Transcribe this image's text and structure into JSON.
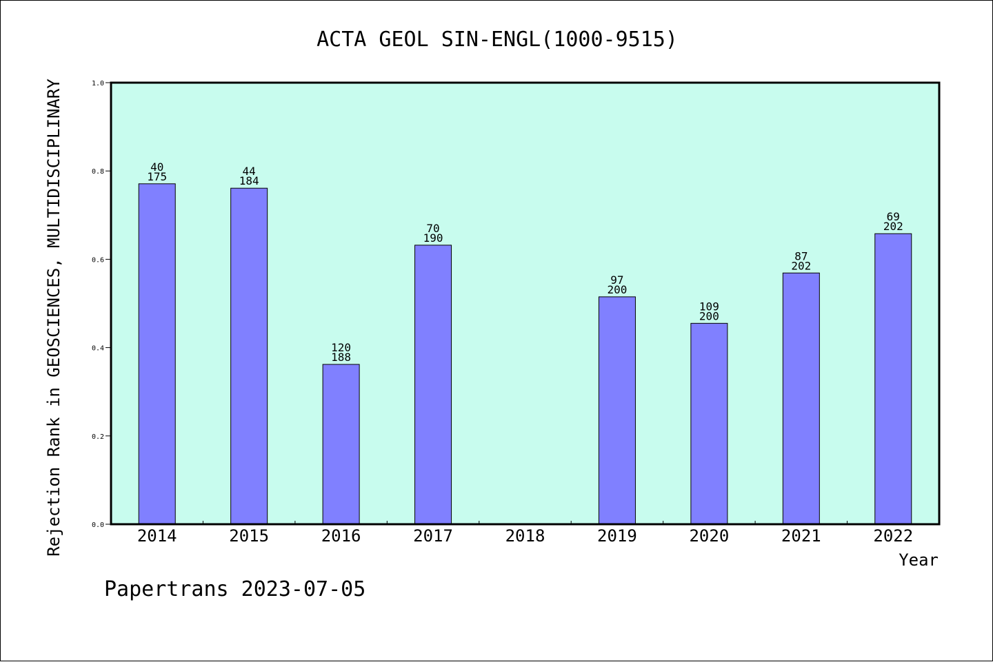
{
  "chart_data": {
    "type": "bar",
    "title": "ACTA GEOL SIN-ENGL(1000-9515)",
    "ylabel": "Rejection Rank in GEOSCIENCES, MULTIDISCIPLINARY",
    "xlabel": "Year",
    "ylim": [
      0,
      1.0
    ],
    "yticks": [
      "0.0",
      "0.2",
      "0.4",
      "0.6",
      "0.8",
      "1.0"
    ],
    "ytick_values": [
      0,
      0.2,
      0.4,
      0.6,
      0.8,
      1.0
    ],
    "categories": [
      "2014",
      "2015",
      "2016",
      "2017",
      "2018",
      "2019",
      "2020",
      "2021",
      "2022"
    ],
    "values": [
      0.771,
      0.761,
      0.362,
      0.632,
      null,
      0.515,
      0.455,
      0.569,
      0.658
    ],
    "rank": [
      40,
      44,
      120,
      70,
      null,
      97,
      109,
      87,
      69
    ],
    "total": [
      175,
      184,
      188,
      190,
      null,
      200,
      200,
      202,
      202
    ],
    "colors": {
      "bar": "#8080ff",
      "plot_bg": "#c8fcee",
      "axis": "#000000"
    },
    "grid": false
  },
  "footer": "Papertrans 2023-07-05"
}
